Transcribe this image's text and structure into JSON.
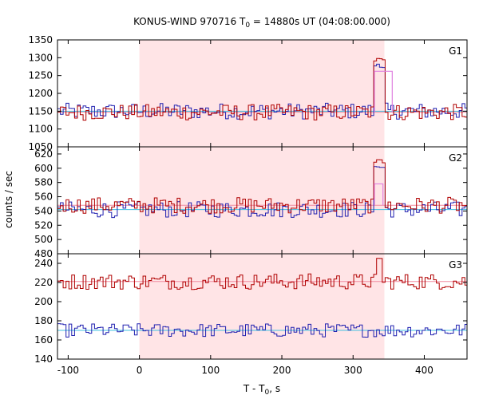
{
  "chart_data": {
    "type": "line",
    "title": "KONUS-WIND 970716 T0 = 14880s UT (04:08:00.000)",
    "title_parts": {
      "pre": "KONUS-WIND 970716 T",
      "sub": "0",
      "post": " = 14880s UT (04:08:00.000)"
    },
    "xlabel": "T - T0, s",
    "xlabel_parts": {
      "pre": "T - T",
      "sub": "0",
      "post": ", s"
    },
    "ylabel": "counts / sec",
    "xlim": [
      -115,
      460
    ],
    "xticks": [
      -100,
      0,
      100,
      200,
      300,
      400
    ],
    "highlight_interval": [
      0,
      344
    ],
    "highlight_color": "#ffe4e6",
    "series_colors": {
      "high": "#b00000",
      "low": "#2020b0",
      "high_bg": "#f08ca0",
      "low_bg": "#40c0e0",
      "peak_fit": "#e080e0"
    },
    "panels": [
      {
        "label": "G1",
        "ylim": [
          1050,
          1350
        ],
        "yticks": [
          1050,
          1100,
          1150,
          1200,
          1250,
          1300,
          1350
        ],
        "background_level": 1147,
        "background_level_low": 1150,
        "peak": {
          "start": 332,
          "end": 344,
          "value": 1300
        },
        "peak_fit": {
          "start": 330,
          "end": 355,
          "value": 1262
        }
      },
      {
        "label": "G2",
        "ylim": [
          480,
          630
        ],
        "yticks": [
          480,
          500,
          520,
          540,
          560,
          580,
          600,
          620
        ],
        "background_level": 548,
        "background_level_low": 542,
        "peak": {
          "start": 330,
          "end": 342,
          "value": 613
        },
        "peak_fit": {
          "start": 330,
          "end": 342,
          "value": 578
        }
      },
      {
        "label": "G3",
        "ylim": [
          140,
          250
        ],
        "yticks": [
          140,
          160,
          180,
          200,
          220,
          240
        ],
        "background_level": 221,
        "background_level_low": 170,
        "peak": {
          "start": 334,
          "end": 338,
          "value": 248
        }
      }
    ],
    "notes": "Step histograms: G1 and G2 show a red and a blue series overlapping near the background level; G3 shows the red series near 220 and the blue series near 170. A burst appears at about T-T0 = 330-345 s."
  }
}
